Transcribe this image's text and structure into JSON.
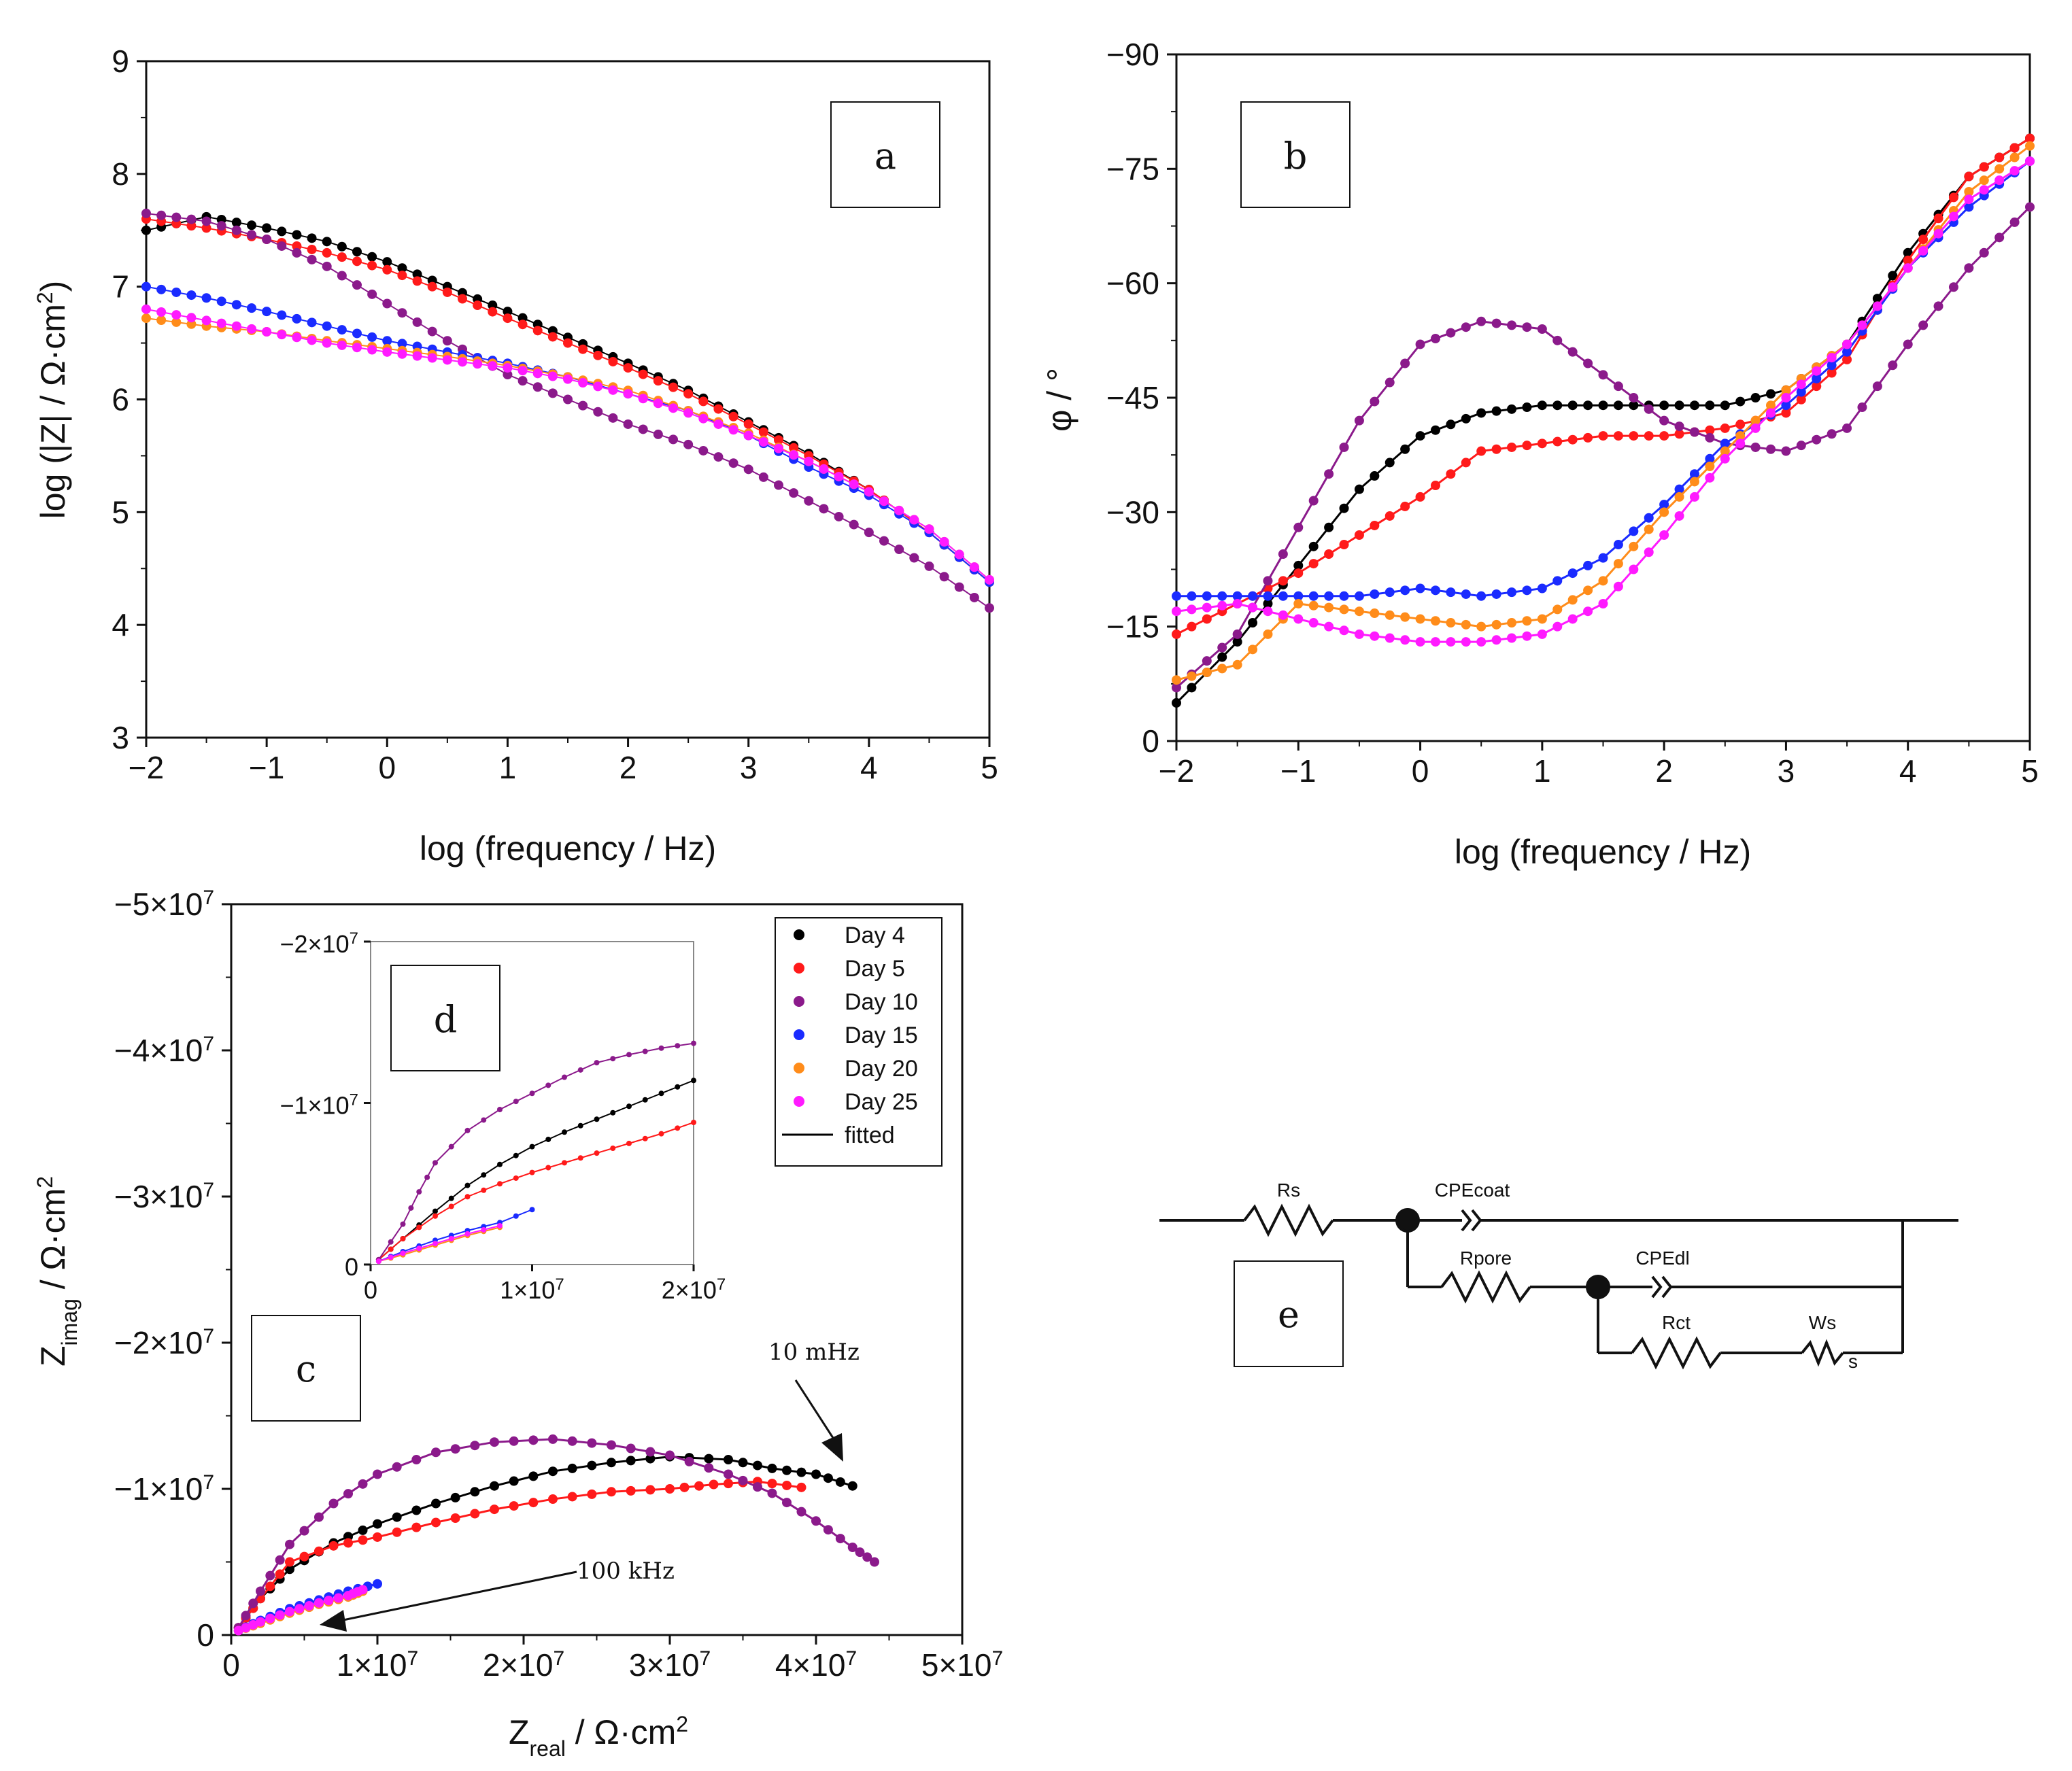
{
  "colors": {
    "day4": "#000000",
    "day5": "#ff1a1a",
    "day10": "#8b1a8b",
    "day15": "#1a2bff",
    "day20": "#ff8c1a",
    "day25": "#ff1aff",
    "fitted": "#000000"
  },
  "chart_data": [
    {
      "type": "scatter",
      "panel": "a",
      "title": "",
      "xlabel": "log (frequency / Hz)",
      "ylabel_prefix": "log (|Z| / Ω·cm",
      "ylabel_sup": "2",
      "ylabel_suffix": ")",
      "xlim": [
        -2,
        5
      ],
      "ylim": [
        3,
        9
      ],
      "xticks": [
        "−2",
        "−1",
        "0",
        "1",
        "2",
        "3",
        "4",
        "5"
      ],
      "yticks": [
        "3",
        "4",
        "5",
        "6",
        "7",
        "8",
        "9"
      ],
      "series": [
        {
          "name": "Day 4",
          "x": [
            -2.0,
            -1.5,
            -1.0,
            -0.5,
            0.0,
            0.5,
            1.0,
            1.5,
            2.0,
            2.5,
            3.0,
            3.5,
            4.0,
            4.5,
            5.0
          ],
          "values": [
            7.5,
            7.62,
            7.52,
            7.4,
            7.22,
            7.0,
            6.78,
            6.55,
            6.32,
            6.08,
            5.8,
            5.52,
            5.2,
            4.82,
            4.38
          ]
        },
        {
          "name": "Day 5",
          "x": [
            -2.0,
            -1.5,
            -1.0,
            -0.5,
            0.0,
            0.5,
            1.0,
            1.5,
            2.0,
            2.5,
            3.0,
            3.5,
            4.0,
            4.5,
            5.0
          ],
          "values": [
            7.6,
            7.52,
            7.42,
            7.3,
            7.15,
            6.95,
            6.72,
            6.5,
            6.28,
            6.05,
            5.78,
            5.5,
            5.2,
            4.82,
            4.38
          ]
        },
        {
          "name": "Day 10",
          "x": [
            -2.0,
            -1.5,
            -1.0,
            -0.5,
            0.0,
            0.5,
            1.0,
            1.5,
            2.0,
            2.5,
            3.0,
            3.5,
            4.0,
            4.5,
            5.0
          ],
          "values": [
            7.65,
            7.58,
            7.42,
            7.18,
            6.85,
            6.52,
            6.22,
            6.0,
            5.78,
            5.6,
            5.38,
            5.1,
            4.82,
            4.52,
            4.15
          ]
        },
        {
          "name": "Day 15",
          "x": [
            -2.0,
            -1.5,
            -1.0,
            -0.5,
            0.0,
            0.5,
            1.0,
            1.5,
            2.0,
            2.5,
            3.0,
            3.5,
            4.0,
            4.5,
            5.0
          ],
          "values": [
            7.0,
            6.9,
            6.78,
            6.65,
            6.52,
            6.42,
            6.32,
            6.2,
            6.05,
            5.9,
            5.68,
            5.4,
            5.15,
            4.82,
            4.38
          ]
        },
        {
          "name": "Day 20",
          "x": [
            -2.0,
            -1.5,
            -1.0,
            -0.5,
            0.0,
            0.5,
            1.0,
            1.5,
            2.0,
            2.5,
            3.0,
            3.5,
            4.0,
            4.5,
            5.0
          ],
          "values": [
            6.72,
            6.65,
            6.6,
            6.52,
            6.45,
            6.38,
            6.3,
            6.2,
            6.08,
            5.9,
            5.7,
            5.45,
            5.18,
            4.85,
            4.4
          ]
        },
        {
          "name": "Day 25",
          "x": [
            -2.0,
            -1.5,
            -1.0,
            -0.5,
            0.0,
            0.5,
            1.0,
            1.5,
            2.0,
            2.5,
            3.0,
            3.5,
            4.0,
            4.5,
            5.0
          ],
          "values": [
            6.8,
            6.7,
            6.6,
            6.5,
            6.42,
            6.35,
            6.28,
            6.18,
            6.05,
            5.88,
            5.68,
            5.45,
            5.18,
            4.85,
            4.4
          ]
        }
      ]
    },
    {
      "type": "scatter",
      "panel": "b",
      "title": "",
      "xlabel": "log (frequency / Hz)",
      "ylabel": "φ / °",
      "xlim": [
        -2,
        5
      ],
      "ylim": [
        0,
        -90
      ],
      "xticks": [
        "−2",
        "−1",
        "0",
        "1",
        "2",
        "3",
        "4",
        "5"
      ],
      "yticks": [
        "0",
        "−15",
        "−30",
        "−45",
        "−60",
        "−75",
        "−90"
      ],
      "series": [
        {
          "name": "Day 4",
          "x": [
            -2.0,
            -1.5,
            -1.0,
            -0.5,
            0.0,
            0.5,
            1.0,
            1.5,
            2.0,
            2.5,
            3.0,
            3.5,
            4.0,
            4.5,
            5.0
          ],
          "values": [
            -5,
            -13,
            -23,
            -33,
            -40,
            -43,
            -44,
            -44,
            -44,
            -44,
            -46,
            -52,
            -64,
            -74,
            -79
          ]
        },
        {
          "name": "Day 5",
          "x": [
            -2.0,
            -1.5,
            -1.0,
            -0.5,
            0.0,
            0.5,
            1.0,
            1.5,
            2.0,
            2.5,
            3.0,
            3.5,
            4.0,
            4.5,
            5.0
          ],
          "values": [
            -14,
            -18,
            -22,
            -27,
            -32,
            -38,
            -39,
            -40,
            -40,
            -41,
            -43,
            -50,
            -63,
            -74,
            -79
          ]
        },
        {
          "name": "Day 10",
          "x": [
            -2.0,
            -1.5,
            -1.0,
            -0.5,
            0.0,
            0.5,
            1.0,
            1.5,
            2.0,
            2.5,
            3.0,
            3.5,
            4.0,
            4.5,
            5.0
          ],
          "values": [
            -7,
            -14,
            -28,
            -42,
            -52,
            -55,
            -54,
            -48,
            -42,
            -39,
            -38,
            -41,
            -52,
            -62,
            -70
          ]
        },
        {
          "name": "Day 15",
          "x": [
            -2.0,
            -1.5,
            -1.0,
            -0.5,
            0.0,
            0.5,
            1.0,
            1.5,
            2.0,
            2.5,
            3.0,
            3.5,
            4.0,
            4.5,
            5.0
          ],
          "values": [
            -19,
            -19,
            -19,
            -19,
            -20,
            -19,
            -20,
            -24,
            -31,
            -39,
            -44,
            -51,
            -62,
            -70,
            -76
          ]
        },
        {
          "name": "Day 20",
          "x": [
            -2.0,
            -1.5,
            -1.0,
            -0.5,
            0.0,
            0.5,
            1.0,
            1.5,
            2.0,
            2.5,
            3.0,
            3.5,
            4.0,
            4.5,
            5.0
          ],
          "values": [
            -8,
            -10,
            -18,
            -17,
            -16,
            -15,
            -16,
            -21,
            -30,
            -38,
            -46,
            -52,
            -62,
            -72,
            -78
          ]
        },
        {
          "name": "Day 25",
          "x": [
            -2.0,
            -1.5,
            -1.0,
            -0.5,
            0.0,
            0.5,
            1.0,
            1.5,
            2.0,
            2.5,
            3.0,
            3.5,
            4.0,
            4.5,
            5.0
          ],
          "values": [
            -17,
            -18,
            -16,
            -14,
            -13,
            -13,
            -14,
            -18,
            -27,
            -37,
            -45,
            -52,
            -62,
            -71,
            -76
          ]
        }
      ]
    },
    {
      "type": "scatter",
      "panel": "c",
      "title": "",
      "xlabel": "Z",
      "xlabel_sub": "real",
      "xlabel_unit": " / Ω·cm",
      "xlabel_sup": "2",
      "ylabel": "Z",
      "ylabel_sub": "imag",
      "ylabel_unit": " / Ω·cm",
      "ylabel_sup": "2",
      "xlim": [
        0,
        50000000
      ],
      "ylim": [
        0,
        -50000000
      ],
      "xticks": [
        {
          "base": "0",
          "exp": ""
        },
        {
          "base": "1×10",
          "exp": "7"
        },
        {
          "base": "2×10",
          "exp": "7"
        },
        {
          "base": "3×10",
          "exp": "7"
        },
        {
          "base": "4×10",
          "exp": "7"
        },
        {
          "base": "5×10",
          "exp": "7"
        }
      ],
      "yticks": [
        {
          "base": "0",
          "exp": ""
        },
        {
          "base": "−1×10",
          "exp": "7"
        },
        {
          "base": "−2×10",
          "exp": "7"
        },
        {
          "base": "−3×10",
          "exp": "7"
        },
        {
          "base": "−4×10",
          "exp": "7"
        },
        {
          "base": "−5×10",
          "exp": "7"
        }
      ],
      "annotations": [
        "10 mHz",
        "100 kHz"
      ],
      "legend": [
        "Day 4",
        "Day 5",
        "Day 10",
        "Day 15",
        "Day 20",
        "Day 25",
        "fitted"
      ],
      "series": [
        {
          "name": "Day 4",
          "x": [
            0.5,
            2,
            4,
            7,
            10,
            14,
            18,
            22,
            26,
            30,
            34,
            37,
            40,
            42.5
          ],
          "values": [
            -0.5,
            -2.5,
            -4.5,
            -6.3,
            -7.6,
            -9.0,
            -10.2,
            -11.2,
            -11.8,
            -12.2,
            -12.0,
            -11.4,
            -11.0,
            -10.2
          ]
        },
        {
          "name": "Day 5",
          "x": [
            0.5,
            2,
            4,
            7,
            10,
            14,
            18,
            22,
            26,
            30,
            33,
            36,
            39
          ],
          "values": [
            -0.5,
            -2.5,
            -5.0,
            -6.1,
            -6.7,
            -7.7,
            -8.6,
            -9.3,
            -9.8,
            -10.0,
            -10.3,
            -10.5,
            -10.1
          ]
        },
        {
          "name": "Day 10",
          "x": [
            0.5,
            2,
            4,
            7,
            10,
            14,
            18,
            22,
            26,
            30,
            34,
            37,
            40,
            42.5,
            44
          ],
          "values": [
            -0.5,
            -3.0,
            -6.2,
            -9.0,
            -11.0,
            -12.5,
            -13.2,
            -13.4,
            -13.0,
            -12.3,
            -11.0,
            -9.7,
            -7.8,
            -6.0,
            -5.0
          ]
        },
        {
          "name": "Day 15",
          "x": [
            0.5,
            2,
            4,
            6,
            8,
            10
          ],
          "values": [
            -0.3,
            -1.0,
            -1.8,
            -2.4,
            -3.0,
            -3.5
          ]
        },
        {
          "name": "Day 20",
          "x": [
            0.5,
            2,
            4,
            6,
            8,
            9
          ],
          "values": [
            -0.3,
            -0.8,
            -1.5,
            -2.1,
            -2.6,
            -3.0
          ]
        },
        {
          "name": "Day 25",
          "x": [
            0.5,
            2,
            4,
            6,
            8,
            9
          ],
          "values": [
            -0.3,
            -0.9,
            -1.6,
            -2.2,
            -2.7,
            -3.1
          ]
        }
      ],
      "series_units": "×10^7 scaled by 1e6 (values in 1e6 Ω·cm²)"
    },
    {
      "type": "scatter",
      "panel": "d",
      "title": "",
      "xlim": [
        0,
        20000000
      ],
      "ylim": [
        0,
        -20000000
      ],
      "xticks": [
        {
          "base": "0",
          "exp": ""
        },
        {
          "base": "1×10",
          "exp": "7"
        },
        {
          "base": "2×10",
          "exp": "7"
        }
      ],
      "yticks": [
        {
          "base": "0",
          "exp": ""
        },
        {
          "base": "−1×10",
          "exp": "7"
        },
        {
          "base": "−2×10",
          "exp": "7"
        }
      ],
      "series": [
        {
          "name": "Day 4",
          "x": [
            0.5,
            2,
            4,
            6,
            8,
            10,
            12,
            14,
            16,
            18,
            20
          ],
          "values": [
            -0.3,
            -1.6,
            -3.3,
            -4.9,
            -6.2,
            -7.3,
            -8.2,
            -9.0,
            -9.8,
            -10.6,
            -11.4
          ]
        },
        {
          "name": "Day 5",
          "x": [
            0.5,
            2,
            4,
            6,
            8,
            10,
            12,
            14,
            16,
            18,
            20
          ],
          "values": [
            -0.3,
            -1.6,
            -3.0,
            -4.2,
            -5.0,
            -5.7,
            -6.3,
            -6.9,
            -7.5,
            -8.1,
            -8.8
          ]
        },
        {
          "name": "Day 10",
          "x": [
            0.5,
            2,
            3,
            4,
            6,
            8,
            10,
            12,
            14,
            16,
            18,
            20
          ],
          "values": [
            -0.3,
            -2.5,
            -4.5,
            -6.3,
            -8.3,
            -9.6,
            -10.6,
            -11.6,
            -12.5,
            -13.0,
            -13.4,
            -13.7
          ]
        },
        {
          "name": "Day 15",
          "x": [
            0.5,
            2,
            4,
            6,
            8,
            10
          ],
          "values": [
            -0.2,
            -0.8,
            -1.5,
            -2.1,
            -2.6,
            -3.4
          ]
        },
        {
          "name": "Day 20",
          "x": [
            0.5,
            2,
            4,
            6,
            8
          ],
          "values": [
            -0.2,
            -0.6,
            -1.2,
            -1.8,
            -2.3
          ]
        },
        {
          "name": "Day 25",
          "x": [
            0.5,
            2,
            4,
            6,
            8
          ],
          "values": [
            -0.2,
            -0.7,
            -1.3,
            -1.9,
            -2.4
          ]
        }
      ]
    }
  ],
  "panels": {
    "a": "a",
    "b": "b",
    "c": "c",
    "d": "d",
    "e": "e"
  },
  "circuit": {
    "rs": "Rs",
    "cpe_coat": "CPEcoat",
    "rpore": "Rpore",
    "cpe_dl": "CPEdl",
    "rct": "Rct",
    "ws": "Ws",
    "ws_sub": "s"
  }
}
